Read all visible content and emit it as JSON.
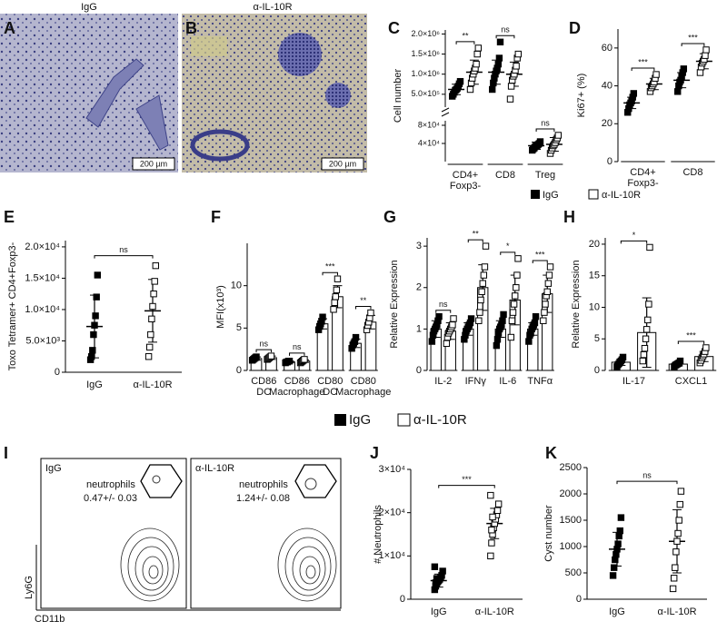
{
  "images": [
    {
      "panel": "A",
      "title": "IgG",
      "scale_bar": "200 µm"
    },
    {
      "panel": "B",
      "title": "α-IL-10R",
      "scale_bar": "200 µm"
    }
  ],
  "legend": [
    "IgG",
    "α-IL-10R"
  ],
  "flow": {
    "panel": "I",
    "y_axis": "Ly6G",
    "x_axis": "CD11b",
    "plots": [
      {
        "title": "IgG",
        "gate": "neutrophils",
        "percent": "0.47+/- 0.03"
      },
      {
        "title": "α-IL-10R",
        "gate": "neutrophils",
        "percent": "1.24+/- 0.08"
      }
    ]
  },
  "chart_data": [
    {
      "type": "grouped",
      "panel": "C",
      "ylabel": "Cell number",
      "categories": [
        "CD4+ Foxp3-",
        "CD8",
        "Treg"
      ],
      "axes": [
        {
          "ylim": [
            0,
            90000
          ],
          "yticks": [
            {
              "value": 40000,
              "label": "4×10⁴"
            },
            {
              "value": 80000,
              "label": "8×10⁴"
            }
          ]
        },
        {
          "ylim": [
            180000,
            2100000
          ],
          "yticks": [
            {
              "value": 500000,
              "label": "5.0×10⁵"
            },
            {
              "value": 1000000,
              "label": "1.0×10⁶"
            },
            {
              "value": 1500000,
              "label": "1.5×10⁶"
            },
            {
              "value": 2000000,
              "label": "2.0×10⁶"
            }
          ]
        }
      ],
      "series": [
        {
          "name": "IgG",
          "fill": "#000",
          "values": [
            620000,
            1050000,
            35000
          ],
          "errors": [
            130000,
            300000,
            8000
          ],
          "points": [
            [
              450000,
              500000,
              550000,
              600000,
              620000,
              650000,
              700000,
              760000,
              820000
            ],
            [
              620000,
              780000,
              900000,
              1000000,
              1080000,
              1150000,
              1250000,
              1400000,
              1800000
            ],
            [
              25000,
              28000,
              30000,
              33000,
              35000,
              36000,
              38000,
              40000,
              44000
            ]
          ]
        },
        {
          "name": "α-IL-10R",
          "fill": "#fff",
          "values": [
            1050000,
            1000000,
            38000
          ],
          "errors": [
            300000,
            300000,
            15000
          ],
          "points": [
            [
              620000,
              780000,
              900000,
              1000000,
              1080000,
              1150000,
              1250000,
              1500000,
              1650000
            ],
            [
              380000,
              700000,
              850000,
              950000,
              1000000,
              1100000,
              1200000,
              1400000,
              1500000
            ],
            [
              18000,
              25000,
              30000,
              35000,
              38000,
              42000,
              48000,
              52000,
              58000
            ]
          ]
        }
      ],
      "significance": [
        "**",
        "ns",
        "ns"
      ]
    },
    {
      "type": "grouped",
      "panel": "D",
      "ylabel": "Ki67+ (%)",
      "categories": [
        "CD4+ Foxp3-",
        "CD8"
      ],
      "ylim": [
        0,
        70
      ],
      "yticks": [
        0,
        20,
        40,
        60
      ],
      "series": [
        {
          "name": "IgG",
          "fill": "#000",
          "values": [
            31,
            43
          ],
          "errors": [
            3,
            4
          ],
          "points": [
            [
              26,
              28,
              30,
              31,
              32,
              34,
              36
            ],
            [
              37,
              40,
              42,
              43,
              45,
              47,
              49
            ]
          ]
        },
        {
          "name": "α-IL-10R",
          "fill": "#fff",
          "values": [
            41,
            53
          ],
          "errors": [
            3,
            4
          ],
          "points": [
            [
              37,
              39,
              40,
              41,
              42,
              44,
              46
            ],
            [
              47,
              50,
              52,
              53,
              54,
              56,
              59
            ]
          ]
        }
      ],
      "significance": [
        "***",
        "***"
      ]
    },
    {
      "type": "paired",
      "panel": "E",
      "ylabel": "Toxo Tetramer+ CD4+Foxp3-",
      "categories": [
        "IgG",
        "α-IL-10R"
      ],
      "fills": [
        "#000",
        "#fff"
      ],
      "ylim": [
        0,
        21000
      ],
      "yticks": [
        0,
        {
          "value": 5000,
          "label": "5.0×10³"
        },
        {
          "value": 10000,
          "label": "1.0×10⁴"
        },
        {
          "value": 15000,
          "label": "1.5×10⁴"
        },
        {
          "value": 20000,
          "label": "2.0×10⁴"
        }
      ],
      "values": [
        7300,
        9800
      ],
      "errors": [
        5000,
        5000
      ],
      "points": [
        [
          2000,
          2500,
          3500,
          6000,
          7500,
          9000,
          12000,
          15500
        ],
        [
          2500,
          4000,
          6000,
          8500,
          10500,
          12500,
          14500,
          17000
        ]
      ],
      "significance": "ns"
    },
    {
      "type": "grouped",
      "panel": "F",
      "ylabel": "MFI(x10³)",
      "bars": true,
      "categories": [
        "CD86 DC",
        "CD86 Macrophage",
        "CD80 DC",
        "CD80 Macrophage"
      ],
      "ylim": [
        0,
        15
      ],
      "yticks": [
        0,
        5,
        10
      ],
      "series": [
        {
          "name": "IgG",
          "fill": "#000",
          "values": [
            1.4,
            1.0,
            5.5,
            3.2
          ],
          "errors": [
            0.2,
            0.1,
            0.6,
            0.5
          ],
          "points": [
            [
              1.2,
              1.3,
              1.4,
              1.5,
              1.6
            ],
            [
              0.9,
              1.0,
              1.0,
              1.1,
              1.1
            ],
            [
              4.8,
              5.2,
              5.5,
              5.8,
              6.3
            ],
            [
              2.6,
              3.0,
              3.2,
              3.4,
              3.9
            ]
          ]
        },
        {
          "name": "α-IL-10R",
          "fill": "#fff",
          "values": [
            1.5,
            1.1,
            8.7,
            5.7
          ],
          "errors": [
            0.2,
            0.15,
            1.3,
            0.8
          ],
          "points": [
            [
              1.3,
              1.4,
              1.5,
              1.6,
              1.7
            ],
            [
              0.9,
              1.0,
              1.1,
              1.2,
              1.3
            ],
            [
              7.2,
              8.0,
              8.7,
              9.5,
              10.8
            ],
            [
              4.8,
              5.3,
              5.7,
              6.2,
              6.8
            ]
          ]
        }
      ],
      "significance": [
        "ns",
        "ns",
        "***",
        "**"
      ]
    },
    {
      "type": "grouped",
      "panel": "G",
      "ylabel": "Relative Expression",
      "bars": true,
      "categories": [
        "IL-2",
        "IFNγ",
        "IL-6",
        "TNFα"
      ],
      "ylim": [
        0,
        3.2
      ],
      "yticks": [
        0,
        1,
        2,
        3
      ],
      "series": [
        {
          "name": "IgG",
          "fill": "#000",
          "values": [
            1.0,
            1.0,
            1.0,
            1.0
          ],
          "errors": [
            0.2,
            0.15,
            0.2,
            0.15
          ],
          "points": [
            [
              0.7,
              0.85,
              0.95,
              1.0,
              1.05,
              1.1,
              1.2,
              1.3
            ],
            [
              0.75,
              0.85,
              0.95,
              1.0,
              1.05,
              1.1,
              1.15,
              1.25
            ],
            [
              0.6,
              0.75,
              0.9,
              1.0,
              1.05,
              1.1,
              1.2,
              1.35
            ],
            [
              0.7,
              0.85,
              0.9,
              1.0,
              1.05,
              1.1,
              1.15,
              1.3
            ]
          ]
        },
        {
          "name": "α-IL-10R",
          "fill": "#fff",
          "values": [
            0.95,
            2.0,
            1.7,
            1.85
          ],
          "errors": [
            0.2,
            0.55,
            0.6,
            0.45
          ],
          "points": [
            [
              0.65,
              0.8,
              0.9,
              0.95,
              1.0,
              1.05,
              1.1,
              1.25
            ],
            [
              1.2,
              1.4,
              1.7,
              1.9,
              2.1,
              2.3,
              2.5,
              3.0
            ],
            [
              0.8,
              1.2,
              1.4,
              1.6,
              1.8,
              2.0,
              2.3,
              2.7
            ],
            [
              1.2,
              1.4,
              1.6,
              1.8,
              1.9,
              2.1,
              2.3,
              2.5
            ]
          ]
        }
      ],
      "significance": [
        "ns",
        "**",
        "*",
        "***"
      ]
    },
    {
      "type": "grouped",
      "panel": "H",
      "ylabel": "Relative Expression",
      "bars": true,
      "categories": [
        "IL-17",
        "CXCL1"
      ],
      "ylim": [
        0,
        21
      ],
      "yticks": [
        0,
        5,
        10,
        15,
        20
      ],
      "series": [
        {
          "name": "IgG",
          "fill": "#000",
          "values": [
            1.3,
            1.0
          ],
          "errors": [
            0.5,
            0.3
          ],
          "points": [
            [
              0.6,
              0.9,
              1.1,
              1.3,
              1.5,
              1.7,
              2.1
            ],
            [
              0.6,
              0.8,
              0.9,
              1.0,
              1.1,
              1.2,
              1.5
            ]
          ]
        },
        {
          "name": "α-IL-10R",
          "fill": "#fff",
          "values": [
            6.0,
            2.2
          ],
          "errors": [
            5.5,
            0.8
          ],
          "points": [
            [
              1.5,
              2.5,
              3.5,
              5.0,
              6.5,
              8.0,
              10.5,
              19.5
            ],
            [
              1.2,
              1.6,
              2.0,
              2.3,
              2.6,
              3.0,
              3.6
            ]
          ]
        }
      ],
      "significance": [
        "*",
        "***"
      ]
    },
    {
      "type": "paired",
      "panel": "J",
      "ylabel": "# Neutrophils",
      "categories": [
        "IgG",
        "α-IL-10R"
      ],
      "fills": [
        "#000",
        "#fff"
      ],
      "ylim": [
        0,
        30000
      ],
      "yticks": [
        0,
        {
          "value": 10000,
          "label": "1×10⁴"
        },
        {
          "value": 20000,
          "label": "2×10⁴"
        },
        {
          "value": 30000,
          "label": "3×10⁴"
        }
      ],
      "values": [
        4300,
        17500
      ],
      "errors": [
        1500,
        3500
      ],
      "points": [
        [
          2200,
          3000,
          3500,
          4000,
          4300,
          4600,
          5000,
          5500,
          6500,
          7500,
          3800,
          4800
        ],
        [
          10000,
          13000,
          15000,
          16500,
          17500,
          18500,
          19500,
          20500,
          22000,
          24000,
          16000,
          19000
        ]
      ],
      "significance": "***"
    },
    {
      "type": "paired",
      "panel": "K",
      "ylabel": "Cyst number",
      "categories": [
        "IgG",
        "α-IL-10R"
      ],
      "fills": [
        "#000",
        "#fff"
      ],
      "ylim": [
        0,
        2500
      ],
      "yticks": [
        0,
        500,
        1000,
        1500,
        2000,
        2500
      ],
      "values": [
        950,
        1100
      ],
      "errors": [
        320,
        600
      ],
      "points": [
        [
          450,
          600,
          750,
          850,
          950,
          1050,
          1200,
          1300,
          1550
        ],
        [
          200,
          400,
          600,
          900,
          1100,
          1250,
          1500,
          1800,
          2050
        ]
      ],
      "significance": "ns"
    }
  ]
}
